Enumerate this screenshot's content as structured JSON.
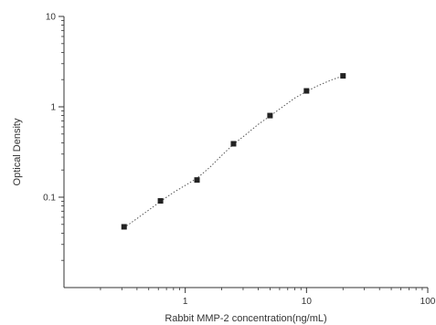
{
  "chart_data": {
    "type": "scatter",
    "title": "",
    "xlabel": "Rabbit MMP-2 concentration(ng/mL)",
    "ylabel": "Optical Density",
    "xscale": "log",
    "yscale": "log",
    "xlim": [
      0.1,
      100
    ],
    "ylim": [
      0.01,
      10
    ],
    "xticks": [
      1,
      10,
      100
    ],
    "xtick_labels": [
      "1",
      "10",
      "100"
    ],
    "yticks": [
      0.1,
      1,
      10
    ],
    "ytick_labels": [
      "0.1",
      "1",
      "10"
    ],
    "grid": false,
    "legend": "none",
    "colors": {
      "axis": "#333333",
      "marker": "#222222",
      "curve": "#555555"
    },
    "series": [
      {
        "x": [
          0.313,
          0.625,
          1.25,
          2.5,
          5,
          10,
          20
        ],
        "y": [
          0.047,
          0.091,
          0.155,
          0.39,
          0.8,
          1.5,
          2.2
        ]
      }
    ],
    "fit_curve": {
      "style": "dotted",
      "x": [
        0.313,
        0.4,
        0.5,
        0.625,
        0.8,
        1.0,
        1.25,
        1.6,
        2.0,
        2.5,
        3.2,
        4.0,
        5.0,
        6.3,
        8.0,
        10,
        12.5,
        16,
        20
      ],
      "y": [
        0.046,
        0.058,
        0.072,
        0.09,
        0.113,
        0.135,
        0.162,
        0.215,
        0.29,
        0.385,
        0.5,
        0.64,
        0.79,
        0.99,
        1.25,
        1.48,
        1.72,
        1.98,
        2.2
      ]
    }
  }
}
